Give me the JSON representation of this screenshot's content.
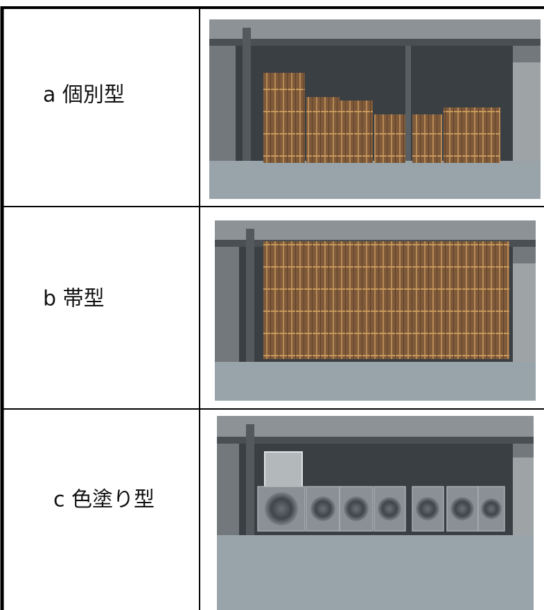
{
  "rows": [
    {
      "label": "a 個別型"
    },
    {
      "label": "b 帯型"
    },
    {
      "label": "c 色塗り型"
    }
  ]
}
